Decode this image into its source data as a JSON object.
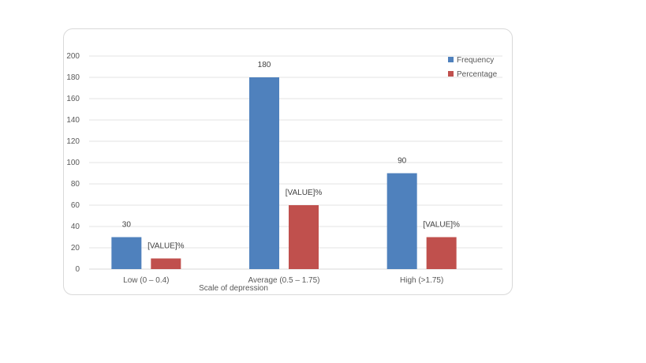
{
  "chart_data": {
    "type": "bar",
    "categories": [
      "Low (0 – 0.4)",
      "Average (0.5 – 1.75)",
      "High (>1.75)"
    ],
    "series": [
      {
        "name": "Frequency",
        "values": [
          30,
          180,
          90
        ],
        "color": "#4F81BD",
        "data_labels": [
          "30",
          "180",
          "90"
        ]
      },
      {
        "name": "Percentage",
        "values": [
          10,
          60,
          30
        ],
        "color": "#C0504D",
        "data_labels": [
          "[VALUE]%",
          "[VALUE]%",
          "[VALUE]%"
        ]
      }
    ],
    "title": "",
    "xlabel": "Scale of depression",
    "ylabel": "",
    "ylim": [
      0,
      200
    ],
    "yticks": [
      0,
      20,
      40,
      60,
      80,
      100,
      120,
      140,
      160,
      180,
      200
    ],
    "grid": true,
    "legend_position": "top-right"
  }
}
